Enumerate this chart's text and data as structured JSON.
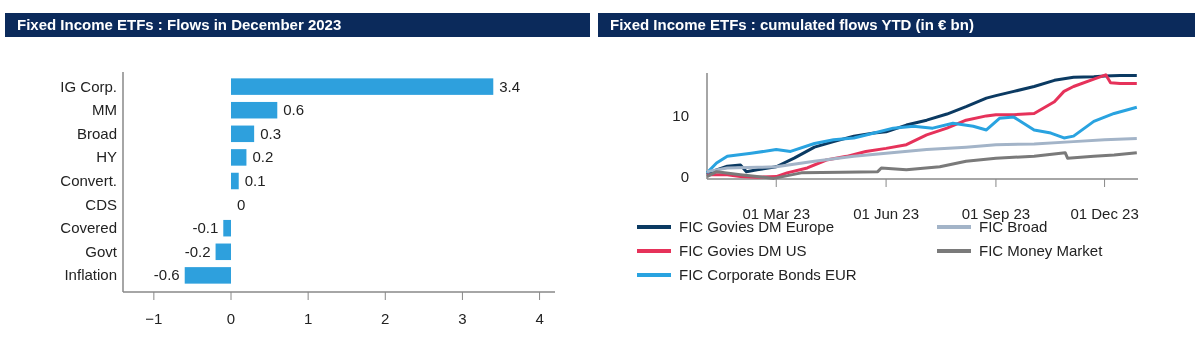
{
  "chart_data": [
    {
      "type": "bar",
      "title": "Fixed Income ETFs : Flows in December 2023",
      "orientation": "horizontal",
      "categories": [
        "IG Corp.",
        "MM",
        "Broad",
        "HY",
        "Convert.",
        "CDS",
        "Covered",
        "Govt",
        "Inflation"
      ],
      "values": [
        3.4,
        0.6,
        0.3,
        0.2,
        0.1,
        0,
        -0.1,
        -0.2,
        -0.6
      ],
      "color": "#2ea0dd",
      "data_labels": true,
      "xlim": [
        -1.4,
        4.2
      ],
      "xticks": [
        {
          "value": -1,
          "label": "−1"
        },
        0,
        1,
        2,
        3,
        4
      ],
      "grid": false
    },
    {
      "type": "line",
      "title": "Fixed Income ETFs : cumulated flows YTD (in € bn)",
      "legend": "bottom",
      "grid": false,
      "xlim": [
        "2023-01-02",
        "2023-12-29"
      ],
      "xticks": [
        {
          "value": "2023-03-01",
          "label": "01 Mar 23"
        },
        {
          "value": "2023-06-01",
          "label": "01 Jun 23"
        },
        {
          "value": "2023-09-01",
          "label": "01 Sep 23"
        },
        {
          "value": "2023-12-01",
          "label": "01 Dec 23"
        }
      ],
      "ylim": [
        -0.3,
        17
      ],
      "yticks": [
        0,
        10
      ],
      "series": [
        {
          "name": "FIC Govies DM Europe",
          "color": "#0b3a62",
          "x": [
            "2023-01-02",
            "2023-01-10",
            "2023-01-19",
            "2023-01-30",
            "2023-02-04",
            "2023-02-13",
            "2023-03-01",
            "2023-03-16",
            "2023-04-02",
            "2023-04-18",
            "2023-05-05",
            "2023-05-22",
            "2023-06-01",
            "2023-06-18",
            "2023-07-05",
            "2023-07-22",
            "2023-08-07",
            "2023-08-24",
            "2023-09-01",
            "2023-09-16",
            "2023-10-03",
            "2023-10-20",
            "2023-11-05",
            "2023-11-22",
            "2023-12-01",
            "2023-12-14",
            "2023-12-28"
          ],
          "values": [
            0.4,
            1.2,
            1.8,
            2.0,
            0.9,
            1.2,
            1.7,
            3.1,
            4.9,
            5.8,
            6.7,
            7.2,
            7.4,
            8.5,
            9.3,
            10.3,
            11.5,
            12.9,
            13.3,
            14.0,
            14.8,
            15.8,
            16.3,
            16.4,
            16.5,
            16.6,
            16.6
          ]
        },
        {
          "name": "FIC Govies DM US",
          "color": "#e6325a",
          "x": [
            "2023-01-02",
            "2023-01-19",
            "2023-01-30",
            "2023-02-13",
            "2023-03-01",
            "2023-03-10",
            "2023-03-27",
            "2023-04-12",
            "2023-04-29",
            "2023-05-15",
            "2023-06-01",
            "2023-06-18",
            "2023-07-05",
            "2023-07-22",
            "2023-08-07",
            "2023-08-24",
            "2023-09-01",
            "2023-09-16",
            "2023-10-03",
            "2023-10-20",
            "2023-10-28",
            "2023-11-05",
            "2023-11-22",
            "2023-12-02",
            "2023-12-06",
            "2023-12-14",
            "2023-12-28"
          ],
          "values": [
            0.4,
            0.4,
            0.1,
            0,
            0.1,
            0.7,
            1.5,
            2.8,
            3.4,
            4.2,
            4.7,
            5.3,
            6.9,
            8.0,
            9.3,
            10.0,
            10.2,
            10.2,
            10.4,
            12.3,
            14.0,
            14.8,
            16.0,
            16.7,
            15.4,
            15.3,
            15.3
          ]
        },
        {
          "name": "FIC Corporate Bonds EUR",
          "color": "#29a3e0",
          "x": [
            "2023-01-02",
            "2023-01-10",
            "2023-01-19",
            "2023-02-08",
            "2023-03-01",
            "2023-03-13",
            "2023-04-02",
            "2023-04-18",
            "2023-05-05",
            "2023-05-22",
            "2023-06-07",
            "2023-06-24",
            "2023-07-10",
            "2023-07-27",
            "2023-08-13",
            "2023-08-24",
            "2023-09-04",
            "2023-09-16",
            "2023-10-03",
            "2023-10-17",
            "2023-10-28",
            "2023-11-05",
            "2023-11-22",
            "2023-12-09",
            "2023-12-28"
          ],
          "values": [
            0.7,
            2.3,
            3.4,
            3.9,
            4.5,
            4.2,
            5.5,
            6.1,
            6.4,
            7.2,
            8.0,
            8.3,
            8.0,
            8.8,
            8.3,
            7.7,
            9.6,
            9.8,
            7.7,
            7.2,
            6.4,
            6.7,
            9.1,
            10.4,
            11.4
          ]
        },
        {
          "name": "FIC Broad",
          "color": "#a3b4c8",
          "x": [
            "2023-01-02",
            "2023-01-19",
            "2023-02-13",
            "2023-03-01",
            "2023-04-02",
            "2023-05-05",
            "2023-06-01",
            "2023-07-05",
            "2023-08-07",
            "2023-09-01",
            "2023-10-03",
            "2023-11-05",
            "2023-12-01",
            "2023-12-28"
          ],
          "values": [
            0.9,
            1.5,
            1.6,
            1.7,
            2.6,
            3.4,
            3.9,
            4.5,
            4.9,
            5.3,
            5.4,
            5.8,
            6.1,
            6.3
          ]
        },
        {
          "name": "FIC Money Market",
          "color": "#7a7a7a",
          "x": [
            "2023-01-02",
            "2023-01-10",
            "2023-01-30",
            "2023-02-27",
            "2023-03-22",
            "2023-04-25",
            "2023-05-25",
            "2023-05-28",
            "2023-06-18",
            "2023-07-16",
            "2023-08-07",
            "2023-09-01",
            "2023-10-03",
            "2023-10-29",
            "2023-10-31",
            "2023-11-22",
            "2023-12-09",
            "2023-12-28"
          ],
          "values": [
            0.1,
            0.9,
            0.4,
            -0.2,
            0.7,
            0.8,
            0.9,
            1.5,
            1.2,
            1.7,
            2.6,
            3.1,
            3.4,
            4.0,
            3.1,
            3.4,
            3.6,
            4.0
          ]
        }
      ]
    }
  ]
}
